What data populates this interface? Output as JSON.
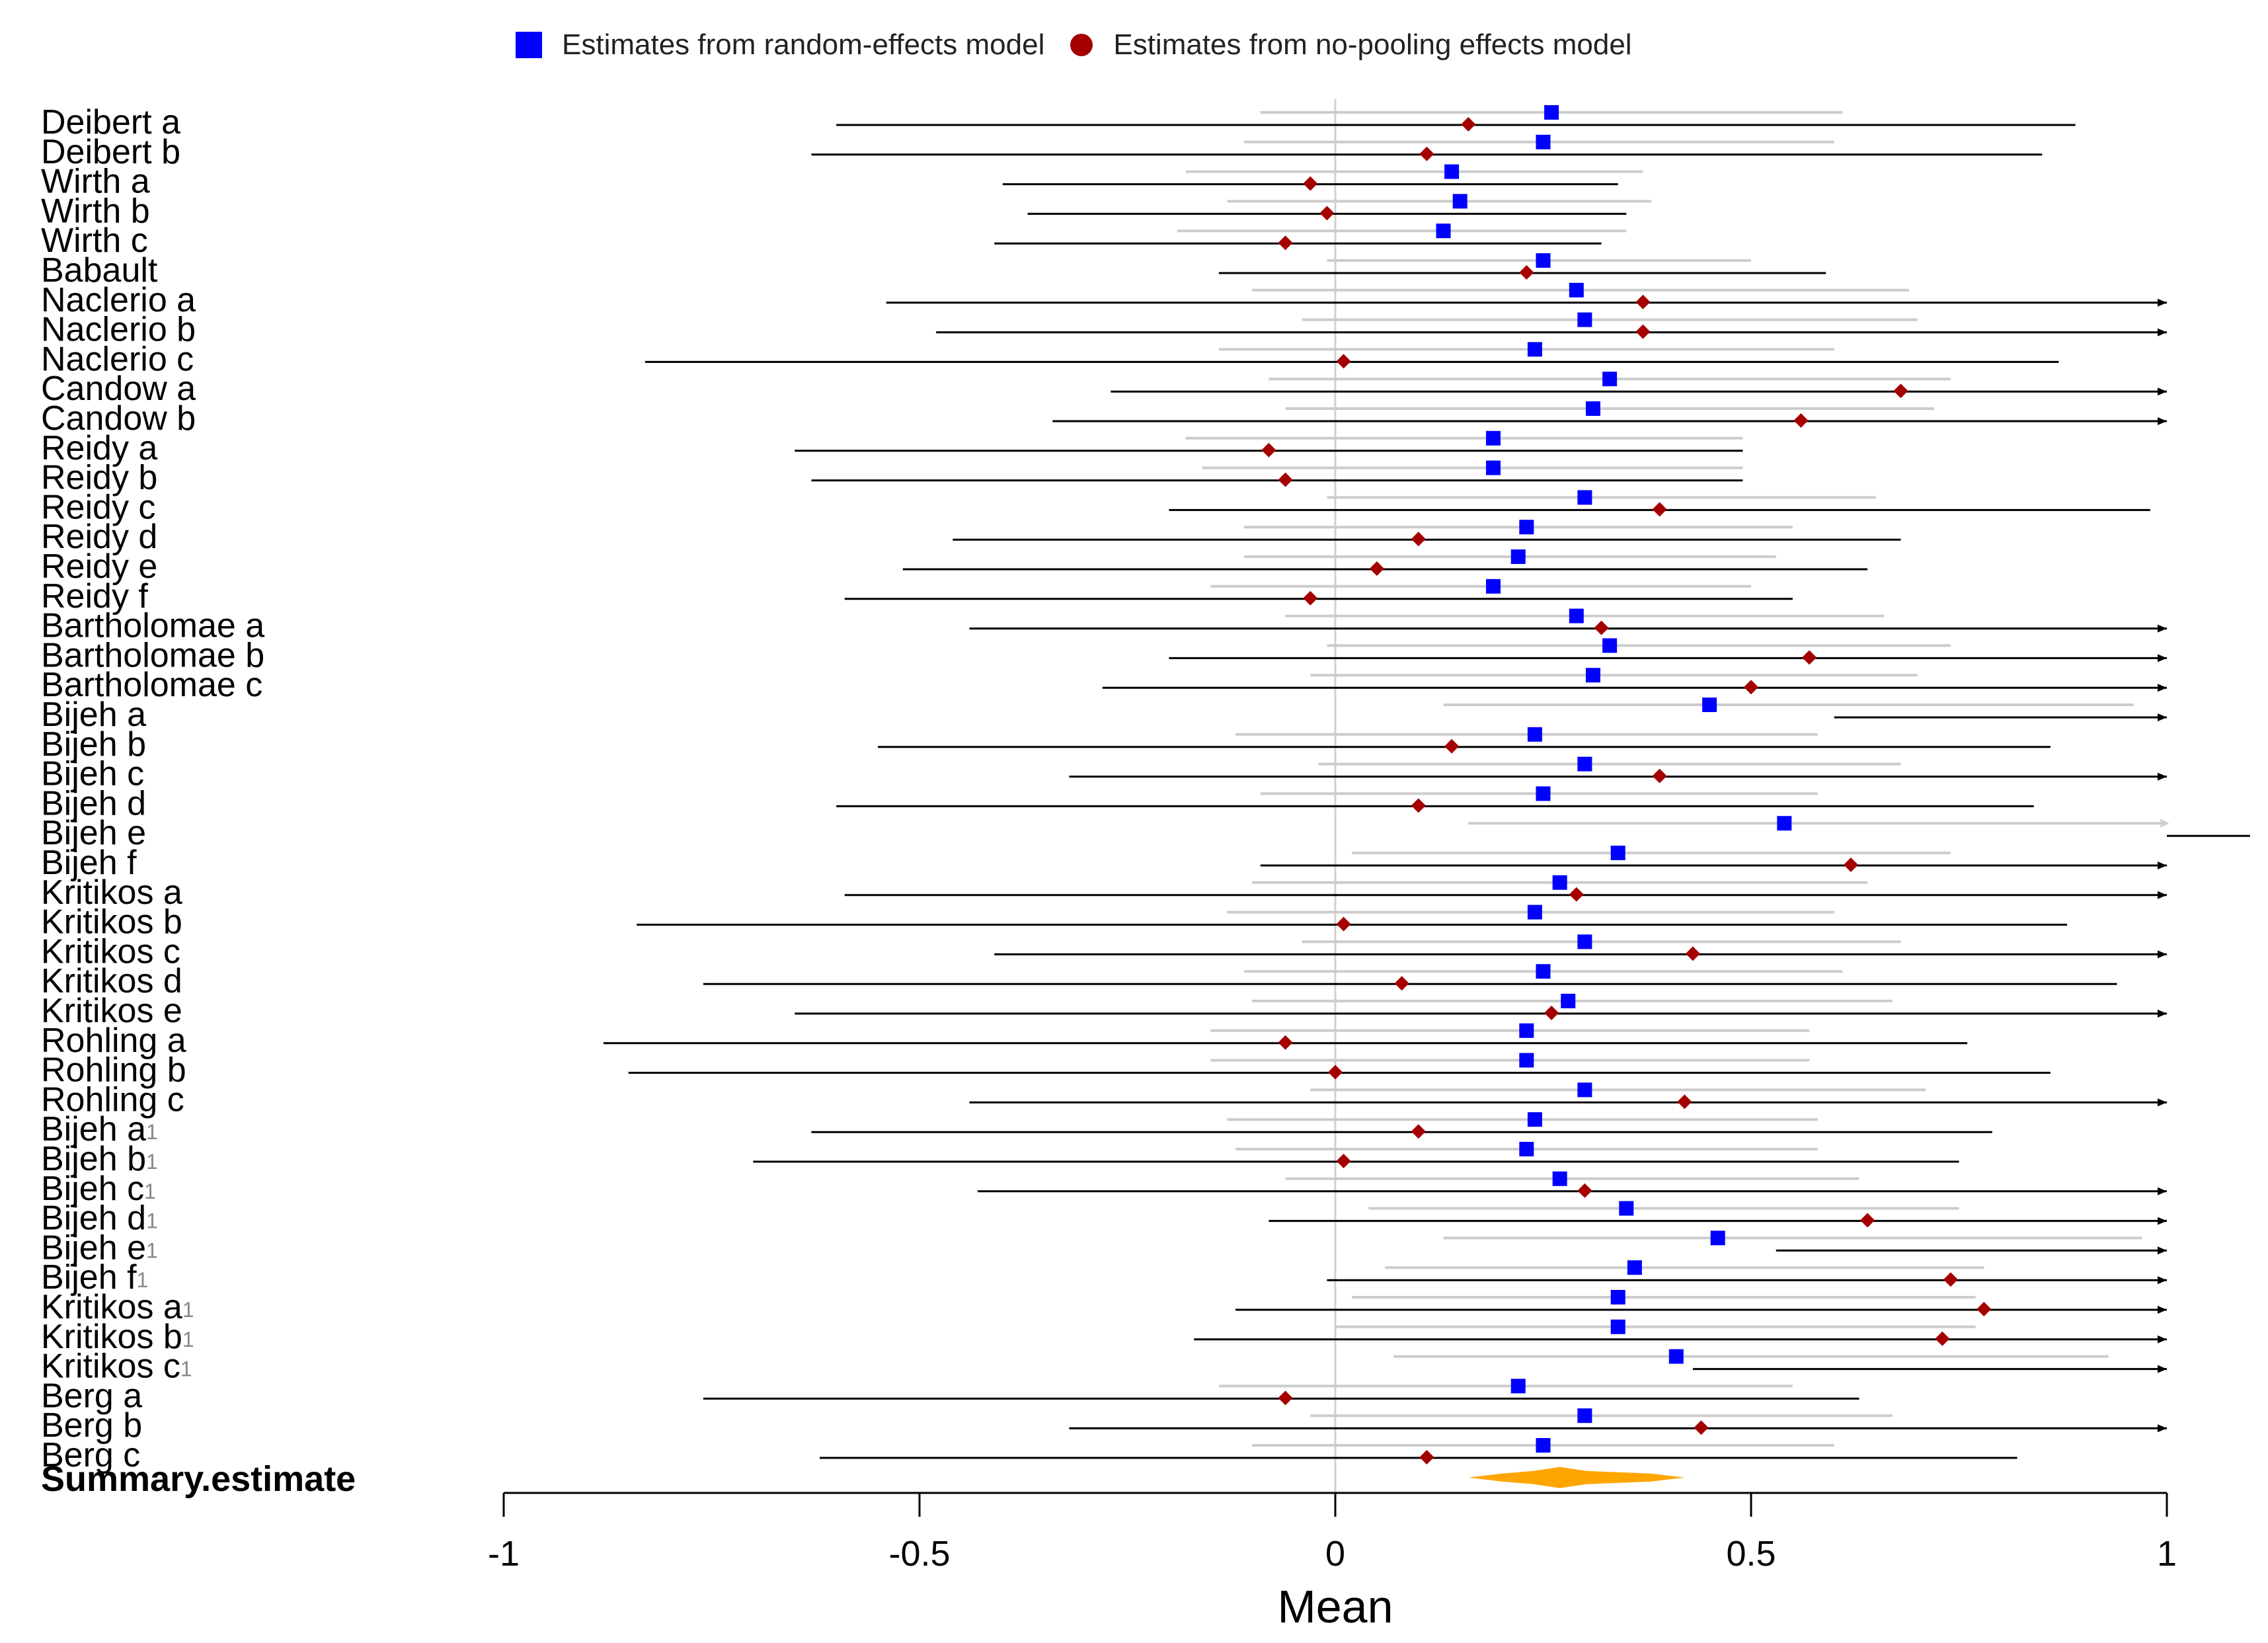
{
  "legend": {
    "random_label": "Estimates from random-effects model",
    "nopool_label": "Estimates from no-pooling effects model"
  },
  "colors": {
    "random": "#0000ff",
    "nopool": "#a50000",
    "summary": "#ffa500",
    "ci_random": "#cccccc",
    "ci_nopool": "#000000",
    "zero_line": "#d0d0d0"
  },
  "chart_data": {
    "type": "forest",
    "xlabel": "Mean",
    "xlim": [
      -1,
      1
    ],
    "xticks": [
      -1,
      -0.5,
      0,
      0.5,
      1
    ],
    "xtick_labels": [
      "-1",
      "-0.5",
      "0",
      "0.5",
      "1"
    ],
    "summary": {
      "label": "Summary.estimate",
      "estimate": 0.27,
      "ci": [
        0.16,
        0.42
      ]
    },
    "studies": [
      {
        "name": "Deibert a",
        "sup": "",
        "random": 0.26,
        "random_ci": [
          -0.09,
          0.61
        ],
        "nopool": 0.16,
        "nopool_ci": [
          -0.6,
          0.89
        ]
      },
      {
        "name": "Deibert b",
        "sup": "",
        "random": 0.25,
        "random_ci": [
          -0.11,
          0.6
        ],
        "nopool": 0.11,
        "nopool_ci": [
          -0.63,
          0.85
        ]
      },
      {
        "name": "Wirth a",
        "sup": "",
        "random": 0.14,
        "random_ci": [
          -0.18,
          0.37
        ],
        "nopool": -0.03,
        "nopool_ci": [
          -0.4,
          0.34
        ]
      },
      {
        "name": "Wirth b",
        "sup": "",
        "random": 0.15,
        "random_ci": [
          -0.13,
          0.38
        ],
        "nopool": -0.01,
        "nopool_ci": [
          -0.37,
          0.35
        ]
      },
      {
        "name": "Wirth c",
        "sup": "",
        "random": 0.13,
        "random_ci": [
          -0.19,
          0.35
        ],
        "nopool": -0.06,
        "nopool_ci": [
          -0.41,
          0.32
        ]
      },
      {
        "name": "Babault",
        "sup": "",
        "random": 0.25,
        "random_ci": [
          -0.01,
          0.5
        ],
        "nopool": 0.23,
        "nopool_ci": [
          -0.14,
          0.59
        ]
      },
      {
        "name": "Naclerio a",
        "sup": "",
        "random": 0.29,
        "random_ci": [
          -0.1,
          0.69
        ],
        "nopool": 0.37,
        "nopool_ci": [
          -0.54,
          1.0
        ]
      },
      {
        "name": "Naclerio b",
        "sup": "",
        "random": 0.3,
        "random_ci": [
          -0.04,
          0.7
        ],
        "nopool": 0.37,
        "nopool_ci": [
          -0.48,
          1.0
        ]
      },
      {
        "name": "Naclerio c",
        "sup": "",
        "random": 0.24,
        "random_ci": [
          -0.14,
          0.6
        ],
        "nopool": 0.01,
        "nopool_ci": [
          -0.83,
          0.87
        ]
      },
      {
        "name": "Candow a",
        "sup": "",
        "random": 0.33,
        "random_ci": [
          -0.08,
          0.74
        ],
        "nopool": 0.68,
        "nopool_ci": [
          -0.27,
          1.0
        ]
      },
      {
        "name": "Candow b",
        "sup": "",
        "random": 0.31,
        "random_ci": [
          -0.06,
          0.72
        ],
        "nopool": 0.56,
        "nopool_ci": [
          -0.34,
          1.0
        ]
      },
      {
        "name": "Reidy a",
        "sup": "",
        "random": 0.19,
        "random_ci": [
          -0.18,
          0.49
        ],
        "nopool": -0.08,
        "nopool_ci": [
          -0.65,
          0.49
        ]
      },
      {
        "name": "Reidy b",
        "sup": "",
        "random": 0.19,
        "random_ci": [
          -0.16,
          0.49
        ],
        "nopool": -0.06,
        "nopool_ci": [
          -0.63,
          0.49
        ]
      },
      {
        "name": "Reidy c",
        "sup": "",
        "random": 0.3,
        "random_ci": [
          -0.01,
          0.65
        ],
        "nopool": 0.39,
        "nopool_ci": [
          -0.2,
          0.98
        ]
      },
      {
        "name": "Reidy d",
        "sup": "",
        "random": 0.23,
        "random_ci": [
          -0.11,
          0.55
        ],
        "nopool": 0.1,
        "nopool_ci": [
          -0.46,
          0.68
        ]
      },
      {
        "name": "Reidy e",
        "sup": "",
        "random": 0.22,
        "random_ci": [
          -0.11,
          0.53
        ],
        "nopool": 0.05,
        "nopool_ci": [
          -0.52,
          0.64
        ]
      },
      {
        "name": "Reidy f",
        "sup": "",
        "random": 0.19,
        "random_ci": [
          -0.15,
          0.5
        ],
        "nopool": -0.03,
        "nopool_ci": [
          -0.59,
          0.55
        ]
      },
      {
        "name": "Bartholomae a",
        "sup": "",
        "random": 0.29,
        "random_ci": [
          -0.06,
          0.66
        ],
        "nopool": 0.32,
        "nopool_ci": [
          -0.44,
          1.0
        ]
      },
      {
        "name": "Bartholomae b",
        "sup": "",
        "random": 0.33,
        "random_ci": [
          -0.01,
          0.74
        ],
        "nopool": 0.57,
        "nopool_ci": [
          -0.2,
          1.0
        ]
      },
      {
        "name": "Bartholomae c",
        "sup": "",
        "random": 0.31,
        "random_ci": [
          -0.03,
          0.7
        ],
        "nopool": 0.5,
        "nopool_ci": [
          -0.28,
          1.0
        ]
      },
      {
        "name": "Bijeh a",
        "sup": "",
        "random": 0.45,
        "random_ci": [
          0.13,
          0.96
        ],
        "nopool": null,
        "nopool_ci": [
          0.6,
          1.0
        ]
      },
      {
        "name": "Bijeh b",
        "sup": "",
        "random": 0.24,
        "random_ci": [
          -0.12,
          0.58
        ],
        "nopool": 0.14,
        "nopool_ci": [
          -0.55,
          0.86
        ]
      },
      {
        "name": "Bijeh c",
        "sup": "",
        "random": 0.3,
        "random_ci": [
          -0.02,
          0.68
        ],
        "nopool": 0.39,
        "nopool_ci": [
          -0.32,
          1.0
        ]
      },
      {
        "name": "Bijeh d",
        "sup": "",
        "random": 0.25,
        "random_ci": [
          -0.09,
          0.58
        ],
        "nopool": 0.1,
        "nopool_ci": [
          -0.6,
          0.84
        ]
      },
      {
        "name": "Bijeh e",
        "sup": "",
        "random": 0.54,
        "random_ci": [
          0.16,
          1.0
        ],
        "nopool": null,
        "nopool_ci": [
          1.0,
          1.1
        ]
      },
      {
        "name": "Bijeh f",
        "sup": "",
        "random": 0.34,
        "random_ci": [
          0.02,
          0.74
        ],
        "nopool": 0.62,
        "nopool_ci": [
          -0.09,
          1.0
        ]
      },
      {
        "name": "Kritikos a",
        "sup": "",
        "random": 0.27,
        "random_ci": [
          -0.1,
          0.64
        ],
        "nopool": 0.29,
        "nopool_ci": [
          -0.59,
          1.0
        ]
      },
      {
        "name": "Kritikos b",
        "sup": "",
        "random": 0.24,
        "random_ci": [
          -0.13,
          0.6
        ],
        "nopool": 0.01,
        "nopool_ci": [
          -0.84,
          0.88
        ]
      },
      {
        "name": "Kritikos c",
        "sup": "",
        "random": 0.3,
        "random_ci": [
          -0.04,
          0.68
        ],
        "nopool": 0.43,
        "nopool_ci": [
          -0.41,
          1.0
        ]
      },
      {
        "name": "Kritikos d",
        "sup": "",
        "random": 0.25,
        "random_ci": [
          -0.11,
          0.61
        ],
        "nopool": 0.08,
        "nopool_ci": [
          -0.76,
          0.94
        ]
      },
      {
        "name": "Kritikos e",
        "sup": "",
        "random": 0.28,
        "random_ci": [
          -0.1,
          0.67
        ],
        "nopool": 0.26,
        "nopool_ci": [
          -0.65,
          1.0
        ]
      },
      {
        "name": "Rohling a",
        "sup": "",
        "random": 0.23,
        "random_ci": [
          -0.15,
          0.57
        ],
        "nopool": -0.06,
        "nopool_ci": [
          -0.88,
          0.76
        ]
      },
      {
        "name": "Rohling b",
        "sup": "",
        "random": 0.23,
        "random_ci": [
          -0.15,
          0.57
        ],
        "nopool": 0.0,
        "nopool_ci": [
          -0.85,
          0.86
        ]
      },
      {
        "name": "Rohling c",
        "sup": "",
        "random": 0.3,
        "random_ci": [
          -0.03,
          0.71
        ],
        "nopool": 0.42,
        "nopool_ci": [
          -0.44,
          1.0
        ]
      },
      {
        "name": "Bijeh a",
        "sup": "1",
        "random": 0.24,
        "random_ci": [
          -0.13,
          0.58
        ],
        "nopool": 0.1,
        "nopool_ci": [
          -0.63,
          0.79
        ]
      },
      {
        "name": "Bijeh b",
        "sup": "1",
        "random": 0.23,
        "random_ci": [
          -0.12,
          0.58
        ],
        "nopool": 0.01,
        "nopool_ci": [
          -0.7,
          0.75
        ]
      },
      {
        "name": "Bijeh c",
        "sup": "1",
        "random": 0.27,
        "random_ci": [
          -0.06,
          0.63
        ],
        "nopool": 0.3,
        "nopool_ci": [
          -0.43,
          1.0
        ]
      },
      {
        "name": "Bijeh d",
        "sup": "1",
        "random": 0.35,
        "random_ci": [
          0.04,
          0.75
        ],
        "nopool": 0.64,
        "nopool_ci": [
          -0.08,
          1.0
        ]
      },
      {
        "name": "Bijeh e",
        "sup": "1",
        "random": 0.46,
        "random_ci": [
          0.13,
          0.97
        ],
        "nopool": null,
        "nopool_ci": [
          0.53,
          1.0
        ]
      },
      {
        "name": "Bijeh f",
        "sup": "1",
        "random": 0.36,
        "random_ci": [
          0.06,
          0.78
        ],
        "nopool": 0.74,
        "nopool_ci": [
          -0.01,
          1.0
        ]
      },
      {
        "name": "Kritikos a",
        "sup": "1",
        "random": 0.34,
        "random_ci": [
          0.02,
          0.77
        ],
        "nopool": 0.78,
        "nopool_ci": [
          -0.12,
          1.0
        ]
      },
      {
        "name": "Kritikos b",
        "sup": "1",
        "random": 0.34,
        "random_ci": [
          0.0,
          0.77
        ],
        "nopool": 0.73,
        "nopool_ci": [
          -0.17,
          1.0
        ]
      },
      {
        "name": "Kritikos c",
        "sup": "1",
        "random": 0.41,
        "random_ci": [
          0.07,
          0.93
        ],
        "nopool": null,
        "nopool_ci": [
          0.43,
          1.0
        ]
      },
      {
        "name": "Berg a",
        "sup": "",
        "random": 0.22,
        "random_ci": [
          -0.14,
          0.55
        ],
        "nopool": -0.06,
        "nopool_ci": [
          -0.76,
          0.63
        ]
      },
      {
        "name": "Berg b",
        "sup": "",
        "random": 0.3,
        "random_ci": [
          -0.03,
          0.67
        ],
        "nopool": 0.44,
        "nopool_ci": [
          -0.32,
          1.0
        ]
      },
      {
        "name": "Berg c",
        "sup": "",
        "random": 0.25,
        "random_ci": [
          -0.1,
          0.6
        ],
        "nopool": 0.11,
        "nopool_ci": [
          -0.62,
          0.82
        ]
      }
    ]
  }
}
